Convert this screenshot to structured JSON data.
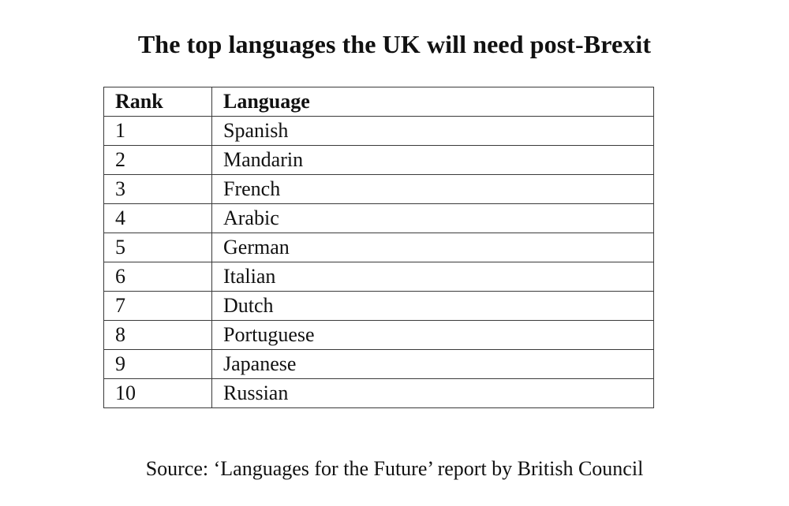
{
  "title": "The top languages the UK will need post-Brexit",
  "table": {
    "headers": {
      "rank": "Rank",
      "language": "Language"
    },
    "rows": [
      {
        "rank": "1",
        "language": "Spanish"
      },
      {
        "rank": "2",
        "language": "Mandarin"
      },
      {
        "rank": "3",
        "language": "French"
      },
      {
        "rank": "4",
        "language": "Arabic"
      },
      {
        "rank": "5",
        "language": "German"
      },
      {
        "rank": "6",
        "language": "Italian"
      },
      {
        "rank": "7",
        "language": "Dutch"
      },
      {
        "rank": "8",
        "language": "Portuguese"
      },
      {
        "rank": "9",
        "language": "Japanese"
      },
      {
        "rank": "10",
        "language": "Russian"
      }
    ]
  },
  "source": "Source: ‘Languages for the Future’ report by British Council"
}
